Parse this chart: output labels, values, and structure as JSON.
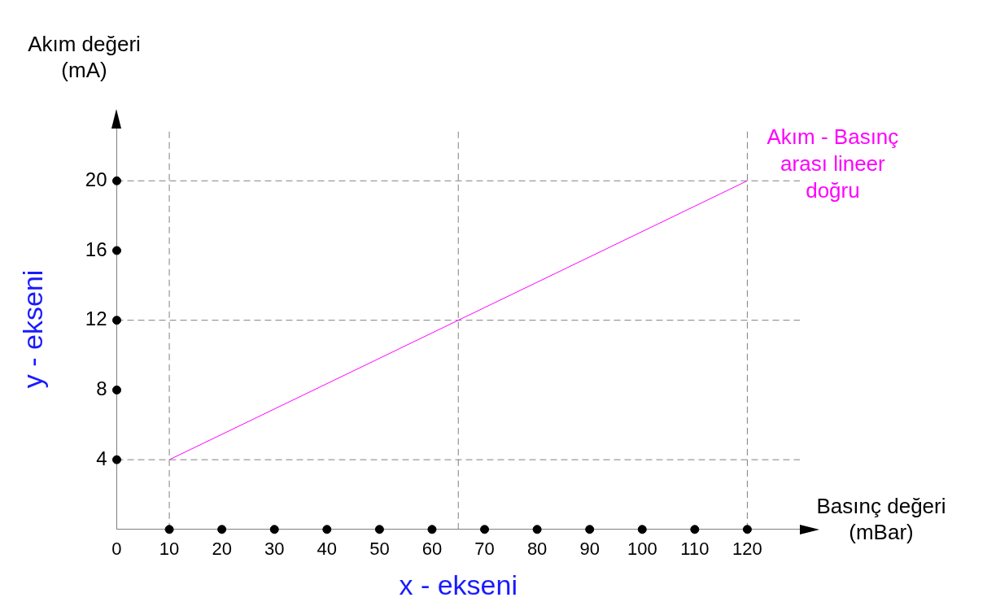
{
  "chart_data": {
    "type": "line",
    "xlabel": "x - ekseni",
    "ylabel": "y - ekseni",
    "annotations": [
      "Akım değeri (mA)",
      "Basınç değeri (mBar)"
    ],
    "x": [
      10,
      65,
      120
    ],
    "series": [
      {
        "name": "Akım - Basınç arası lineer doğru",
        "color": "#ff00ff",
        "values": [
          4,
          12,
          20
        ]
      },
      {
        "type": "scatter",
        "color": "#000000",
        "marker": "circle",
        "x": [
          10,
          20,
          30,
          40,
          50,
          60,
          70,
          80,
          90,
          100,
          110,
          120
        ],
        "values": [
          0,
          0,
          0,
          0,
          0,
          0,
          0,
          0,
          0,
          0,
          0,
          0
        ]
      },
      {
        "type": "scatter",
        "color": "#000000",
        "marker": "circle",
        "x": [
          0,
          0,
          0,
          0,
          0
        ],
        "values": [
          4,
          8,
          12,
          16,
          20
        ]
      }
    ],
    "xlim": [
      0,
      130
    ],
    "ylim": [
      0,
      23
    ],
    "xticks": [
      0,
      10,
      20,
      30,
      40,
      50,
      60,
      70,
      80,
      90,
      100,
      110,
      120
    ],
    "yticks": [
      4,
      8,
      12,
      16,
      20
    ],
    "ref_lines": [
      {
        "axis": "y",
        "value": 4,
        "line_style": "dashed",
        "color": "#808080"
      },
      {
        "axis": "y",
        "value": 12,
        "line_style": "dashed",
        "color": "#808080"
      },
      {
        "axis": "y",
        "value": 20,
        "line_style": "dashed",
        "color": "#808080"
      },
      {
        "axis": "x",
        "value": 10,
        "line_style": "dashed",
        "color": "#808080"
      },
      {
        "axis": "x",
        "value": 65,
        "line_style": "dashed",
        "color": "#808080"
      },
      {
        "axis": "x",
        "value": 120,
        "line_style": "dashed",
        "color": "#808080"
      }
    ],
    "grid": false,
    "legend": false,
    "marker": "none",
    "line_style": "solid"
  }
}
